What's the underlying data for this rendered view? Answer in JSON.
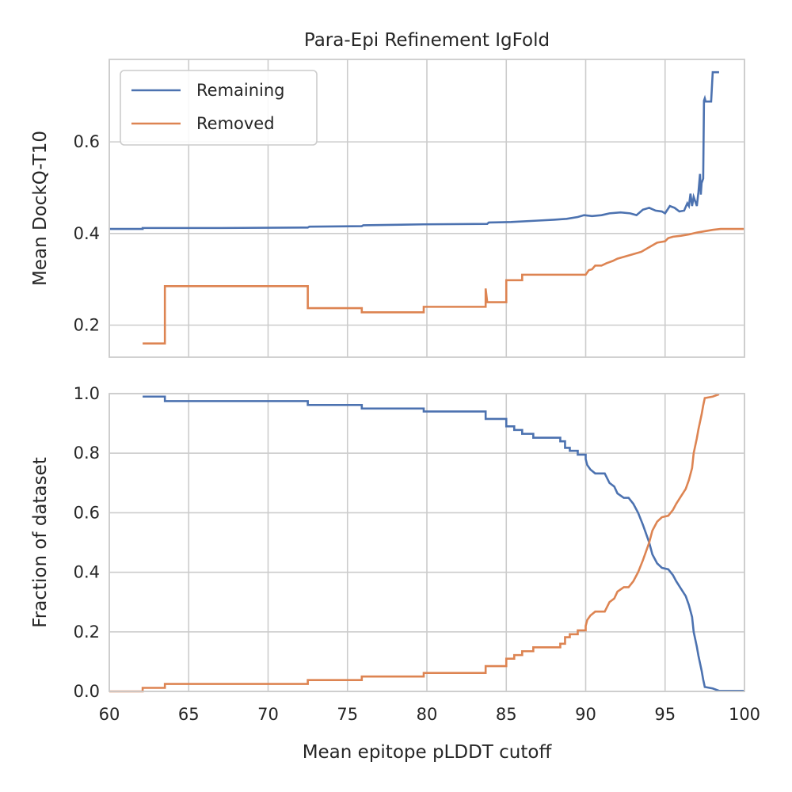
{
  "chart_data": [
    {
      "type": "line",
      "title": "Para-Epi Refinement IgFold",
      "xlabel": "",
      "ylabel": "Mean DockQ-T10",
      "xlim": [
        60,
        100
      ],
      "ylim": [
        0.13,
        0.78
      ],
      "xticks": [
        60,
        65,
        70,
        75,
        80,
        85,
        90,
        95,
        100
      ],
      "yticks": [
        0.2,
        0.4,
        0.6
      ],
      "ytick_labels": [
        "0.2",
        "0.4",
        "0.6"
      ],
      "grid": true,
      "legend": "top-left",
      "series": [
        {
          "name": "Remaining",
          "color": "#4c72b0",
          "points": [
            [
              60.0,
              0.41
            ],
            [
              62.1,
              0.41
            ],
            [
              62.1,
              0.412
            ],
            [
              67.0,
              0.412
            ],
            [
              72.5,
              0.413
            ],
            [
              72.6,
              0.415
            ],
            [
              75.9,
              0.416
            ],
            [
              76.0,
              0.418
            ],
            [
              79.8,
              0.42
            ],
            [
              83.8,
              0.421
            ],
            [
              83.9,
              0.424
            ],
            [
              85.3,
              0.425
            ],
            [
              86.9,
              0.428
            ],
            [
              88.0,
              0.43
            ],
            [
              88.8,
              0.432
            ],
            [
              89.5,
              0.436
            ],
            [
              89.9,
              0.44
            ],
            [
              90.4,
              0.438
            ],
            [
              91.0,
              0.44
            ],
            [
              91.5,
              0.444
            ],
            [
              92.2,
              0.446
            ],
            [
              92.8,
              0.444
            ],
            [
              93.2,
              0.44
            ],
            [
              93.6,
              0.452
            ],
            [
              94.0,
              0.456
            ],
            [
              94.4,
              0.45
            ],
            [
              94.8,
              0.448
            ],
            [
              95.0,
              0.444
            ],
            [
              95.3,
              0.46
            ],
            [
              95.6,
              0.456
            ],
            [
              95.9,
              0.448
            ],
            [
              96.2,
              0.45
            ],
            [
              96.4,
              0.466
            ],
            [
              96.5,
              0.46
            ],
            [
              96.6,
              0.487
            ],
            [
              96.7,
              0.46
            ],
            [
              96.8,
              0.48
            ],
            [
              96.9,
              0.47
            ],
            [
              97.0,
              0.46
            ],
            [
              97.1,
              0.49
            ],
            [
              97.2,
              0.53
            ],
            [
              97.25,
              0.485
            ],
            [
              97.3,
              0.51
            ],
            [
              97.4,
              0.52
            ],
            [
              97.45,
              0.69
            ],
            [
              97.5,
              0.695
            ],
            [
              97.55,
              0.688
            ],
            [
              97.6,
              0.688
            ],
            [
              97.9,
              0.688
            ],
            [
              98.0,
              0.752
            ],
            [
              98.4,
              0.752
            ]
          ]
        },
        {
          "name": "Removed",
          "color": "#dd8452",
          "points": [
            [
              62.1,
              0.16
            ],
            [
              63.5,
              0.16
            ],
            [
              63.5,
              0.285
            ],
            [
              72.5,
              0.285
            ],
            [
              72.5,
              0.237
            ],
            [
              75.9,
              0.237
            ],
            [
              75.9,
              0.228
            ],
            [
              79.8,
              0.228
            ],
            [
              79.8,
              0.24
            ],
            [
              83.7,
              0.24
            ],
            [
              83.7,
              0.28
            ],
            [
              83.8,
              0.25
            ],
            [
              85.0,
              0.25
            ],
            [
              85.0,
              0.298
            ],
            [
              86.0,
              0.298
            ],
            [
              86.0,
              0.31
            ],
            [
              90.0,
              0.31
            ],
            [
              90.2,
              0.32
            ],
            [
              90.4,
              0.322
            ],
            [
              90.6,
              0.33
            ],
            [
              91.0,
              0.33
            ],
            [
              91.3,
              0.335
            ],
            [
              91.7,
              0.34
            ],
            [
              92.0,
              0.345
            ],
            [
              92.5,
              0.35
            ],
            [
              93.0,
              0.355
            ],
            [
              93.5,
              0.36
            ],
            [
              94.0,
              0.37
            ],
            [
              94.5,
              0.38
            ],
            [
              95.0,
              0.383
            ],
            [
              95.2,
              0.39
            ],
            [
              95.5,
              0.393
            ],
            [
              96.0,
              0.395
            ],
            [
              96.5,
              0.398
            ],
            [
              97.0,
              0.402
            ],
            [
              97.5,
              0.405
            ],
            [
              98.0,
              0.408
            ],
            [
              98.5,
              0.41
            ],
            [
              100.0,
              0.41
            ]
          ]
        }
      ]
    },
    {
      "type": "line",
      "title": "",
      "xlabel": "Mean epitope pLDDT cutoff",
      "ylabel": "Fraction of dataset",
      "xlim": [
        60,
        100
      ],
      "ylim": [
        0.0,
        1.0
      ],
      "xticks": [
        60,
        65,
        70,
        75,
        80,
        85,
        90,
        95,
        100
      ],
      "yticks": [
        0.0,
        0.2,
        0.4,
        0.6,
        0.8,
        1.0
      ],
      "ytick_labels": [
        "0.0",
        "0.2",
        "0.4",
        "0.6",
        "0.8",
        "1.0"
      ],
      "grid": true,
      "series": [
        {
          "color": "#4c72b0",
          "points": [
            [
              62.1,
              0.99
            ],
            [
              63.5,
              0.99
            ],
            [
              63.5,
              0.975
            ],
            [
              72.5,
              0.975
            ],
            [
              72.5,
              0.962
            ],
            [
              75.9,
              0.962
            ],
            [
              75.9,
              0.95
            ],
            [
              79.8,
              0.95
            ],
            [
              79.8,
              0.94
            ],
            [
              83.7,
              0.94
            ],
            [
              83.7,
              0.915
            ],
            [
              85.0,
              0.915
            ],
            [
              85.0,
              0.89
            ],
            [
              85.5,
              0.89
            ],
            [
              85.5,
              0.878
            ],
            [
              86.0,
              0.878
            ],
            [
              86.0,
              0.865
            ],
            [
              86.7,
              0.865
            ],
            [
              86.7,
              0.852
            ],
            [
              88.4,
              0.852
            ],
            [
              88.4,
              0.84
            ],
            [
              88.7,
              0.84
            ],
            [
              88.7,
              0.818
            ],
            [
              89.0,
              0.818
            ],
            [
              89.0,
              0.808
            ],
            [
              89.5,
              0.808
            ],
            [
              89.5,
              0.795
            ],
            [
              90.0,
              0.795
            ],
            [
              90.0,
              0.78
            ],
            [
              90.1,
              0.76
            ],
            [
              90.3,
              0.745
            ],
            [
              90.6,
              0.732
            ],
            [
              91.2,
              0.732
            ],
            [
              91.5,
              0.7
            ],
            [
              91.8,
              0.688
            ],
            [
              92.0,
              0.665
            ],
            [
              92.4,
              0.65
            ],
            [
              92.7,
              0.65
            ],
            [
              93.0,
              0.63
            ],
            [
              93.3,
              0.6
            ],
            [
              93.6,
              0.56
            ],
            [
              93.8,
              0.53
            ],
            [
              94.0,
              0.5
            ],
            [
              94.2,
              0.46
            ],
            [
              94.5,
              0.43
            ],
            [
              94.8,
              0.415
            ],
            [
              95.2,
              0.41
            ],
            [
              95.5,
              0.39
            ],
            [
              95.7,
              0.37
            ],
            [
              96.0,
              0.345
            ],
            [
              96.3,
              0.32
            ],
            [
              96.5,
              0.29
            ],
            [
              96.7,
              0.25
            ],
            [
              96.8,
              0.2
            ],
            [
              97.0,
              0.15
            ],
            [
              97.1,
              0.12
            ],
            [
              97.3,
              0.07
            ],
            [
              97.4,
              0.04
            ],
            [
              97.5,
              0.015
            ],
            [
              98.0,
              0.01
            ],
            [
              98.4,
              0.002
            ],
            [
              100.0,
              0.002
            ]
          ]
        },
        {
          "color": "#dd8452",
          "points": [
            [
              60.0,
              0.0
            ],
            [
              62.1,
              0.0
            ],
            [
              62.1,
              0.012
            ],
            [
              63.5,
              0.012
            ],
            [
              63.5,
              0.025
            ],
            [
              72.5,
              0.025
            ],
            [
              72.5,
              0.038
            ],
            [
              75.9,
              0.038
            ],
            [
              75.9,
              0.05
            ],
            [
              79.8,
              0.05
            ],
            [
              79.8,
              0.062
            ],
            [
              83.7,
              0.062
            ],
            [
              83.7,
              0.085
            ],
            [
              85.0,
              0.085
            ],
            [
              85.0,
              0.11
            ],
            [
              85.5,
              0.11
            ],
            [
              85.5,
              0.122
            ],
            [
              86.0,
              0.122
            ],
            [
              86.0,
              0.135
            ],
            [
              86.7,
              0.135
            ],
            [
              86.7,
              0.148
            ],
            [
              88.4,
              0.148
            ],
            [
              88.4,
              0.16
            ],
            [
              88.7,
              0.16
            ],
            [
              88.7,
              0.182
            ],
            [
              89.0,
              0.182
            ],
            [
              89.0,
              0.192
            ],
            [
              89.5,
              0.192
            ],
            [
              89.5,
              0.205
            ],
            [
              90.0,
              0.205
            ],
            [
              90.0,
              0.22
            ],
            [
              90.1,
              0.24
            ],
            [
              90.3,
              0.255
            ],
            [
              90.6,
              0.268
            ],
            [
              91.2,
              0.268
            ],
            [
              91.5,
              0.3
            ],
            [
              91.8,
              0.312
            ],
            [
              92.0,
              0.335
            ],
            [
              92.4,
              0.35
            ],
            [
              92.7,
              0.35
            ],
            [
              93.0,
              0.37
            ],
            [
              93.3,
              0.4
            ],
            [
              93.6,
              0.44
            ],
            [
              93.8,
              0.47
            ],
            [
              94.0,
              0.5
            ],
            [
              94.2,
              0.54
            ],
            [
              94.5,
              0.57
            ],
            [
              94.8,
              0.585
            ],
            [
              95.2,
              0.59
            ],
            [
              95.5,
              0.61
            ],
            [
              95.7,
              0.63
            ],
            [
              96.0,
              0.655
            ],
            [
              96.3,
              0.68
            ],
            [
              96.5,
              0.71
            ],
            [
              96.7,
              0.75
            ],
            [
              96.8,
              0.8
            ],
            [
              97.0,
              0.85
            ],
            [
              97.1,
              0.88
            ],
            [
              97.3,
              0.93
            ],
            [
              97.4,
              0.96
            ],
            [
              97.5,
              0.985
            ],
            [
              98.0,
              0.99
            ],
            [
              98.4,
              0.998
            ]
          ]
        }
      ]
    }
  ]
}
